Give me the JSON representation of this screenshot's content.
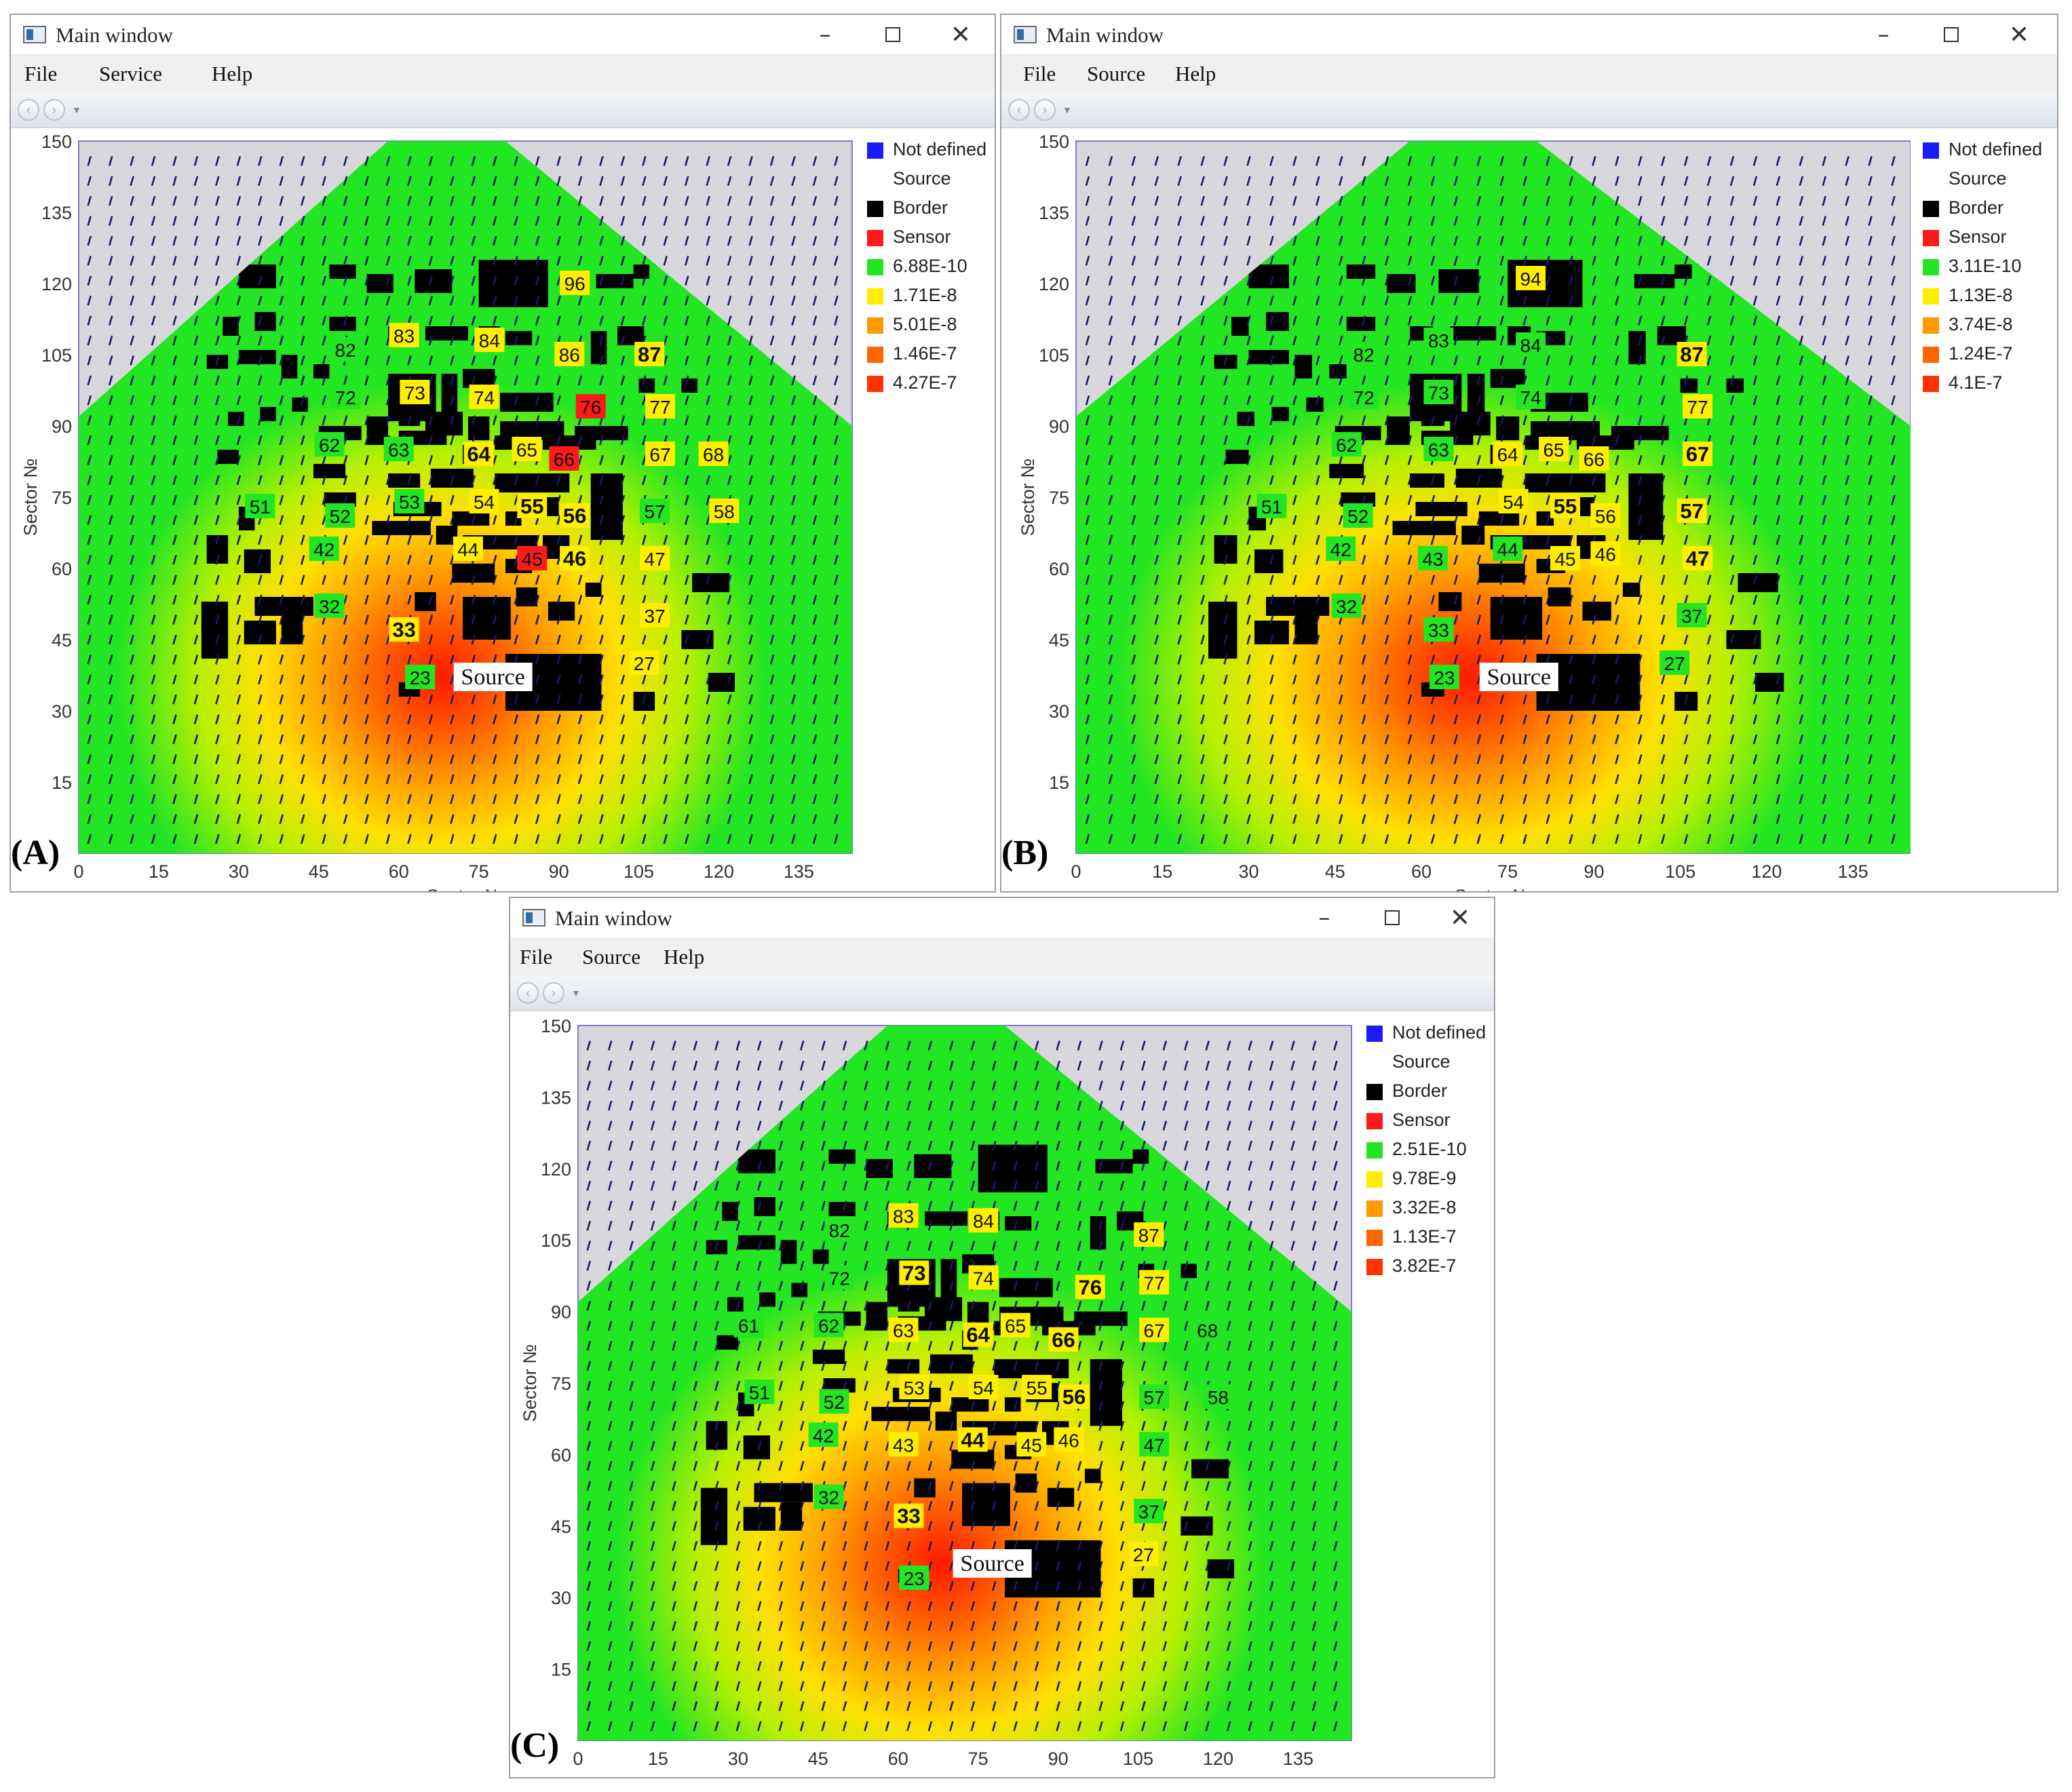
{
  "figure": {
    "windows": [
      {
        "panel": "(A)",
        "title": "Main window",
        "menu": [
          "File",
          "Service",
          "Help"
        ],
        "y_axis_title": "Sector №",
        "x_axis_title": "Sector №",
        "x_ticks": [
          "0",
          "15",
          "30",
          "45",
          "60",
          "75",
          "90",
          "105",
          "120",
          "135"
        ],
        "y_ticks": [
          "150",
          "135",
          "120",
          "105",
          "90",
          "75",
          "60",
          "45",
          "30",
          "15"
        ],
        "source_label": "Source",
        "legend": [
          {
            "label": "Not defined",
            "color": "#1a1aff"
          },
          {
            "label": "Source",
            "color": ""
          },
          {
            "label": "Border",
            "color": "#000000"
          },
          {
            "label": "Sensor",
            "color": "#ff1a1a"
          },
          {
            "label": "6.88E-10",
            "color": "#22e622"
          },
          {
            "label": "1.71E-8",
            "color": "#ffee00"
          },
          {
            "label": "5.01E-8",
            "color": "#ff9900"
          },
          {
            "label": "1.46E-7",
            "color": "#ff6600"
          },
          {
            "label": "4.27E-7",
            "color": "#ff3300"
          }
        ],
        "sensors": [
          {
            "id": "96",
            "bg": "#ffee00",
            "x": 93,
            "y": 120,
            "bold": false
          },
          {
            "id": "83",
            "bg": "#ffee00",
            "x": 61,
            "y": 109,
            "bold": false
          },
          {
            "id": "84",
            "bg": "#ffee00",
            "x": 77,
            "y": 108,
            "bold": false
          },
          {
            "id": "86",
            "bg": "#ffee00",
            "x": 92,
            "y": 105,
            "bold": false
          },
          {
            "id": "87",
            "bg": "#ffee00",
            "x": 107,
            "y": 105,
            "bold": true
          },
          {
            "id": "82",
            "bg": "#22e622",
            "x": 50,
            "y": 106,
            "bold": false
          },
          {
            "id": "72",
            "bg": "#22e622",
            "x": 50,
            "y": 96,
            "bold": false
          },
          {
            "id": "73",
            "bg": "#ffee00",
            "x": 63,
            "y": 97,
            "bold": false
          },
          {
            "id": "74",
            "bg": "#ffee00",
            "x": 76,
            "y": 96,
            "bold": false
          },
          {
            "id": "76",
            "bg": "#ff1a1a",
            "x": 96,
            "y": 94,
            "bold": false
          },
          {
            "id": "77",
            "bg": "#ffee00",
            "x": 109,
            "y": 94,
            "bold": false
          },
          {
            "id": "62",
            "bg": "#22e622",
            "x": 47,
            "y": 86,
            "bold": false
          },
          {
            "id": "63",
            "bg": "#22e622",
            "x": 60,
            "y": 85,
            "bold": false
          },
          {
            "id": "64",
            "bg": "#ffee00",
            "x": 75,
            "y": 84,
            "bold": true
          },
          {
            "id": "65",
            "bg": "#ffee00",
            "x": 84,
            "y": 85,
            "bold": false
          },
          {
            "id": "66",
            "bg": "#ff1a1a",
            "x": 91,
            "y": 83,
            "bold": false
          },
          {
            "id": "67",
            "bg": "#ffee00",
            "x": 109,
            "y": 84,
            "bold": false
          },
          {
            "id": "68",
            "bg": "#ffee00",
            "x": 119,
            "y": 84,
            "bold": false
          },
          {
            "id": "51",
            "bg": "#22e622",
            "x": 34,
            "y": 73,
            "bold": false
          },
          {
            "id": "52",
            "bg": "#22e622",
            "x": 49,
            "y": 71,
            "bold": false
          },
          {
            "id": "53",
            "bg": "#22e622",
            "x": 62,
            "y": 74,
            "bold": false
          },
          {
            "id": "54",
            "bg": "#ffee00",
            "x": 76,
            "y": 74,
            "bold": false
          },
          {
            "id": "55",
            "bg": "#ffee00",
            "x": 85,
            "y": 73,
            "bold": true
          },
          {
            "id": "56",
            "bg": "#ffee00",
            "x": 93,
            "y": 71,
            "bold": true
          },
          {
            "id": "57",
            "bg": "#22e622",
            "x": 108,
            "y": 72,
            "bold": false
          },
          {
            "id": "58",
            "bg": "#ffee00",
            "x": 121,
            "y": 72,
            "bold": false
          },
          {
            "id": "42",
            "bg": "#22e622",
            "x": 46,
            "y": 64,
            "bold": false
          },
          {
            "id": "44",
            "bg": "#ffee00",
            "x": 73,
            "y": 64,
            "bold": false
          },
          {
            "id": "45",
            "bg": "#ff1a1a",
            "x": 85,
            "y": 62,
            "bold": false
          },
          {
            "id": "46",
            "bg": "#ffee00",
            "x": 93,
            "y": 62,
            "bold": true
          },
          {
            "id": "47",
            "bg": "#ffee00",
            "x": 108,
            "y": 62,
            "bold": false
          },
          {
            "id": "32",
            "bg": "#22e622",
            "x": 47,
            "y": 52,
            "bold": false
          },
          {
            "id": "33",
            "bg": "#ffee00",
            "x": 61,
            "y": 47,
            "bold": true
          },
          {
            "id": "37",
            "bg": "#ffee00",
            "x": 108,
            "y": 50,
            "bold": false
          },
          {
            "id": "27",
            "bg": "#ffee00",
            "x": 106,
            "y": 40,
            "bold": false
          },
          {
            "id": "23",
            "bg": "#22e622",
            "x": 64,
            "y": 37,
            "bold": false
          }
        ]
      },
      {
        "panel": "(B)",
        "title": "Main window",
        "menu": [
          "File",
          "Source",
          "Help"
        ],
        "y_axis_title": "Sector №",
        "x_axis_title": "Sector №",
        "x_ticks": [
          "0",
          "15",
          "30",
          "45",
          "60",
          "75",
          "90",
          "105",
          "120",
          "135"
        ],
        "y_ticks": [
          "150",
          "135",
          "120",
          "105",
          "90",
          "75",
          "60",
          "45",
          "30",
          "15"
        ],
        "source_label": "Source",
        "legend": [
          {
            "label": "Not defined",
            "color": "#1a1aff"
          },
          {
            "label": "Source",
            "color": ""
          },
          {
            "label": "Border",
            "color": "#000000"
          },
          {
            "label": "Sensor",
            "color": "#ff1a1a"
          },
          {
            "label": "3.11E-10",
            "color": "#22e622"
          },
          {
            "label": "1.13E-8",
            "color": "#ffee00"
          },
          {
            "label": "3.74E-8",
            "color": "#ff9900"
          },
          {
            "label": "1.24E-7",
            "color": "#ff6600"
          },
          {
            "label": "4.1E-7",
            "color": "#ff3300"
          }
        ],
        "sensors": [
          {
            "id": "94",
            "bg": "#ffee00",
            "x": 79,
            "y": 121,
            "bold": false
          },
          {
            "id": "83",
            "bg": "#22e622",
            "x": 63,
            "y": 108,
            "bold": false
          },
          {
            "id": "84",
            "bg": "#22e622",
            "x": 79,
            "y": 107,
            "bold": false
          },
          {
            "id": "87",
            "bg": "#ffee00",
            "x": 107,
            "y": 105,
            "bold": true
          },
          {
            "id": "82",
            "bg": "#22e622",
            "x": 50,
            "y": 105,
            "bold": false
          },
          {
            "id": "72",
            "bg": "#22e622",
            "x": 50,
            "y": 96,
            "bold": false
          },
          {
            "id": "73",
            "bg": "#22e622",
            "x": 63,
            "y": 97,
            "bold": false
          },
          {
            "id": "74",
            "bg": "#22e622",
            "x": 79,
            "y": 96,
            "bold": false
          },
          {
            "id": "77",
            "bg": "#ffee00",
            "x": 108,
            "y": 94,
            "bold": false
          },
          {
            "id": "62",
            "bg": "#22e622",
            "x": 47,
            "y": 86,
            "bold": false
          },
          {
            "id": "63",
            "bg": "#22e622",
            "x": 63,
            "y": 85,
            "bold": false
          },
          {
            "id": "64",
            "bg": "#ffee00",
            "x": 75,
            "y": 84,
            "bold": false
          },
          {
            "id": "65",
            "bg": "#ffee00",
            "x": 83,
            "y": 85,
            "bold": false
          },
          {
            "id": "66",
            "bg": "#ffee00",
            "x": 90,
            "y": 83,
            "bold": false
          },
          {
            "id": "67",
            "bg": "#ffee00",
            "x": 108,
            "y": 84,
            "bold": true
          },
          {
            "id": "51",
            "bg": "#22e622",
            "x": 34,
            "y": 73,
            "bold": false
          },
          {
            "id": "52",
            "bg": "#22e622",
            "x": 49,
            "y": 71,
            "bold": false
          },
          {
            "id": "54",
            "bg": "#ffee00",
            "x": 76,
            "y": 74,
            "bold": false
          },
          {
            "id": "55",
            "bg": "#ffee00",
            "x": 85,
            "y": 73,
            "bold": true
          },
          {
            "id": "56",
            "bg": "#ffee00",
            "x": 92,
            "y": 71,
            "bold": false
          },
          {
            "id": "57",
            "bg": "#ffee00",
            "x": 107,
            "y": 72,
            "bold": true
          },
          {
            "id": "42",
            "bg": "#22e622",
            "x": 46,
            "y": 64,
            "bold": false
          },
          {
            "id": "43",
            "bg": "#22e622",
            "x": 62,
            "y": 62,
            "bold": false
          },
          {
            "id": "44",
            "bg": "#22e622",
            "x": 75,
            "y": 64,
            "bold": false
          },
          {
            "id": "45",
            "bg": "#ffee00",
            "x": 85,
            "y": 62,
            "bold": false
          },
          {
            "id": "46",
            "bg": "#ffee00",
            "x": 92,
            "y": 63,
            "bold": false
          },
          {
            "id": "47",
            "bg": "#ffee00",
            "x": 108,
            "y": 62,
            "bold": true
          },
          {
            "id": "32",
            "bg": "#22e622",
            "x": 47,
            "y": 52,
            "bold": false
          },
          {
            "id": "33",
            "bg": "#22e622",
            "x": 63,
            "y": 47,
            "bold": false
          },
          {
            "id": "37",
            "bg": "#22e622",
            "x": 107,
            "y": 50,
            "bold": false
          },
          {
            "id": "27",
            "bg": "#22e622",
            "x": 104,
            "y": 40,
            "bold": false
          },
          {
            "id": "23",
            "bg": "#22e622",
            "x": 64,
            "y": 37,
            "bold": false
          }
        ]
      },
      {
        "panel": "(C)",
        "title": "Main window",
        "menu": [
          "File",
          "Source",
          "Help"
        ],
        "y_axis_title": "Sector №",
        "x_axis_title": "",
        "x_ticks": [
          "0",
          "15",
          "30",
          "45",
          "60",
          "75",
          "90",
          "105",
          "120",
          "135"
        ],
        "y_ticks": [
          "150",
          "135",
          "120",
          "105",
          "90",
          "75",
          "60",
          "45",
          "30",
          "15"
        ],
        "source_label": "Source",
        "legend": [
          {
            "label": "Not defined",
            "color": "#1a1aff"
          },
          {
            "label": "Source",
            "color": ""
          },
          {
            "label": "Border",
            "color": "#000000"
          },
          {
            "label": "Sensor",
            "color": "#ff1a1a"
          },
          {
            "label": "2.51E-10",
            "color": "#22e622"
          },
          {
            "label": "9.78E-9",
            "color": "#ffee00"
          },
          {
            "label": "3.32E-8",
            "color": "#ff9900"
          },
          {
            "label": "1.13E-7",
            "color": "#ff6600"
          },
          {
            "label": "3.82E-7",
            "color": "#ff3300"
          }
        ],
        "sensors": [
          {
            "id": "83",
            "bg": "#ffee00",
            "x": 61,
            "y": 110,
            "bold": false
          },
          {
            "id": "84",
            "bg": "#ffee00",
            "x": 76,
            "y": 109,
            "bold": false
          },
          {
            "id": "87",
            "bg": "#ffee00",
            "x": 107,
            "y": 106,
            "bold": false
          },
          {
            "id": "82",
            "bg": "#22e622",
            "x": 49,
            "y": 107,
            "bold": false
          },
          {
            "id": "72",
            "bg": "#22e622",
            "x": 49,
            "y": 97,
            "bold": false
          },
          {
            "id": "73",
            "bg": "#ffee00",
            "x": 63,
            "y": 98,
            "bold": true
          },
          {
            "id": "74",
            "bg": "#ffee00",
            "x": 76,
            "y": 97,
            "bold": false
          },
          {
            "id": "76",
            "bg": "#ffee00",
            "x": 96,
            "y": 95,
            "bold": true
          },
          {
            "id": "77",
            "bg": "#ffee00",
            "x": 108,
            "y": 96,
            "bold": false
          },
          {
            "id": "61",
            "bg": "#22e622",
            "x": 32,
            "y": 87,
            "bold": false
          },
          {
            "id": "62",
            "bg": "#22e622",
            "x": 47,
            "y": 87,
            "bold": false
          },
          {
            "id": "63",
            "bg": "#ffee00",
            "x": 61,
            "y": 86,
            "bold": false
          },
          {
            "id": "64",
            "bg": "#ffee00",
            "x": 75,
            "y": 85,
            "bold": true
          },
          {
            "id": "65",
            "bg": "#ffee00",
            "x": 82,
            "y": 87,
            "bold": false
          },
          {
            "id": "66",
            "bg": "#ffee00",
            "x": 91,
            "y": 84,
            "bold": true
          },
          {
            "id": "67",
            "bg": "#ffee00",
            "x": 108,
            "y": 86,
            "bold": false
          },
          {
            "id": "68",
            "bg": "#22e622",
            "x": 118,
            "y": 86,
            "bold": false
          },
          {
            "id": "51",
            "bg": "#22e622",
            "x": 34,
            "y": 73,
            "bold": false
          },
          {
            "id": "52",
            "bg": "#22e622",
            "x": 48,
            "y": 71,
            "bold": false
          },
          {
            "id": "53",
            "bg": "#ffee00",
            "x": 63,
            "y": 74,
            "bold": false
          },
          {
            "id": "54",
            "bg": "#ffee00",
            "x": 76,
            "y": 74,
            "bold": false
          },
          {
            "id": "55",
            "bg": "#ffee00",
            "x": 86,
            "y": 74,
            "bold": false
          },
          {
            "id": "56",
            "bg": "#ffee00",
            "x": 93,
            "y": 72,
            "bold": true
          },
          {
            "id": "57",
            "bg": "#22e622",
            "x": 108,
            "y": 72,
            "bold": false
          },
          {
            "id": "58",
            "bg": "#22e622",
            "x": 120,
            "y": 72,
            "bold": false
          },
          {
            "id": "42",
            "bg": "#22e622",
            "x": 46,
            "y": 64,
            "bold": false
          },
          {
            "id": "43",
            "bg": "#ffee00",
            "x": 61,
            "y": 62,
            "bold": false
          },
          {
            "id": "44",
            "bg": "#ffee00",
            "x": 74,
            "y": 63,
            "bold": true
          },
          {
            "id": "45",
            "bg": "#ffee00",
            "x": 85,
            "y": 62,
            "bold": false
          },
          {
            "id": "46",
            "bg": "#ffee00",
            "x": 92,
            "y": 63,
            "bold": false
          },
          {
            "id": "47",
            "bg": "#22e622",
            "x": 108,
            "y": 62,
            "bold": false
          },
          {
            "id": "32",
            "bg": "#22e622",
            "x": 47,
            "y": 51,
            "bold": false
          },
          {
            "id": "33",
            "bg": "#ffee00",
            "x": 62,
            "y": 47,
            "bold": true
          },
          {
            "id": "37",
            "bg": "#22e622",
            "x": 107,
            "y": 48,
            "bold": false
          },
          {
            "id": "27",
            "bg": "#ffee00",
            "x": 106,
            "y": 39,
            "bold": false
          },
          {
            "id": "23",
            "bg": "#22e622",
            "x": 63,
            "y": 34,
            "bold": false
          }
        ]
      }
    ]
  }
}
